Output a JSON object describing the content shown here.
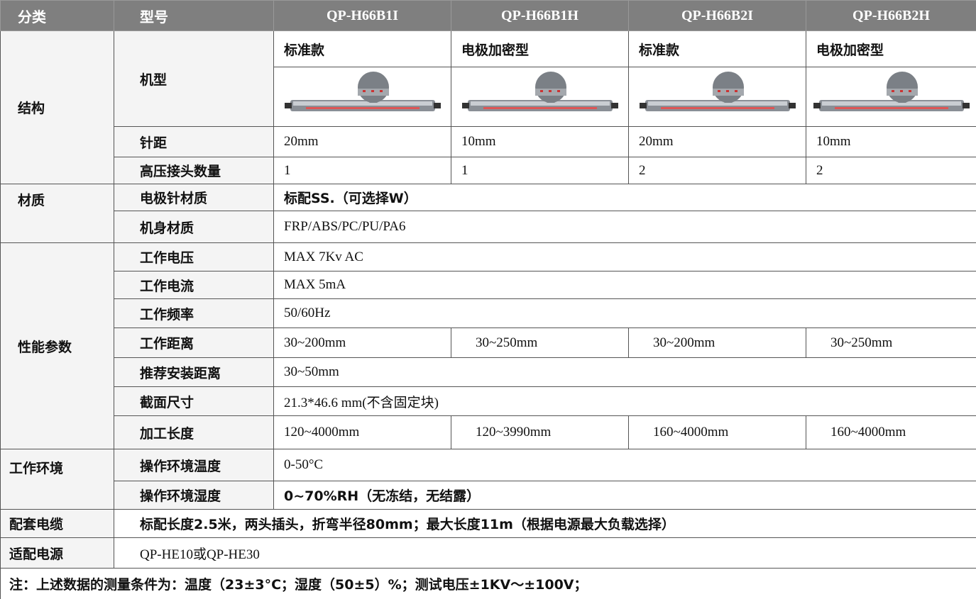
{
  "table": {
    "header": [
      "分类",
      "型号",
      "QP-H66B1I",
      "QP-H66B1H",
      "QP-H66B2I",
      "QP-H66B2H"
    ],
    "structure": {
      "group": "结构",
      "model_label": "机型",
      "styles": [
        "标准款",
        "电极加密型",
        "标准款",
        "电极加密型"
      ],
      "pitch_label": "针距",
      "pitch": [
        "20mm",
        "10mm",
        "20mm",
        "10mm"
      ],
      "connectors_label": "高压接头数量",
      "connectors": [
        "1",
        "1",
        "2",
        "2"
      ]
    },
    "material": {
      "group": "材质",
      "rows": [
        {
          "label": "电极针材质",
          "value": "标配SS.（可选择W）"
        },
        {
          "label": "机身材质",
          "value": "FRP/ABS/PC/PU/PA6"
        }
      ]
    },
    "performance": {
      "group": "性能参数",
      "voltage": {
        "label": "工作电压",
        "value": "MAX 7Kv AC"
      },
      "current": {
        "label": "工作电流",
        "value": "MAX 5mA"
      },
      "frequency": {
        "label": "工作频率",
        "value": "50/60Hz"
      },
      "distance": {
        "label": "工作距离",
        "values": [
          "30~200mm",
          "30~250mm",
          "30~200mm",
          "30~250mm"
        ]
      },
      "install": {
        "label": "推荐安装距离",
        "value": "30~50mm"
      },
      "section": {
        "label": "截面尺寸",
        "value": "21.3*46.6 mm(不含固定块)"
      },
      "length": {
        "label": "加工长度",
        "values": [
          "120~4000mm",
          "120~3990mm",
          "160~4000mm",
          "160~4000mm"
        ]
      }
    },
    "environment": {
      "group": "工作环境",
      "rows": [
        {
          "label": "操作环境温度",
          "value": "0-50°C"
        },
        {
          "label": "操作环境湿度",
          "value": "0~70%RH（无冻结，无结露）"
        }
      ]
    },
    "cable": {
      "label": "配套电缆",
      "value": "标配长度2.5米，两头插头，折弯半径80mm；最大长度11m（根据电源最大负载选择）"
    },
    "power": {
      "label": "适配电源",
      "value": "QP-HE10或QP-HE30"
    },
    "note": "注：上述数据的测量条件为：温度（23±3°C；湿度（50±5）%；测试电压±1KV〜±100V；"
  }
}
